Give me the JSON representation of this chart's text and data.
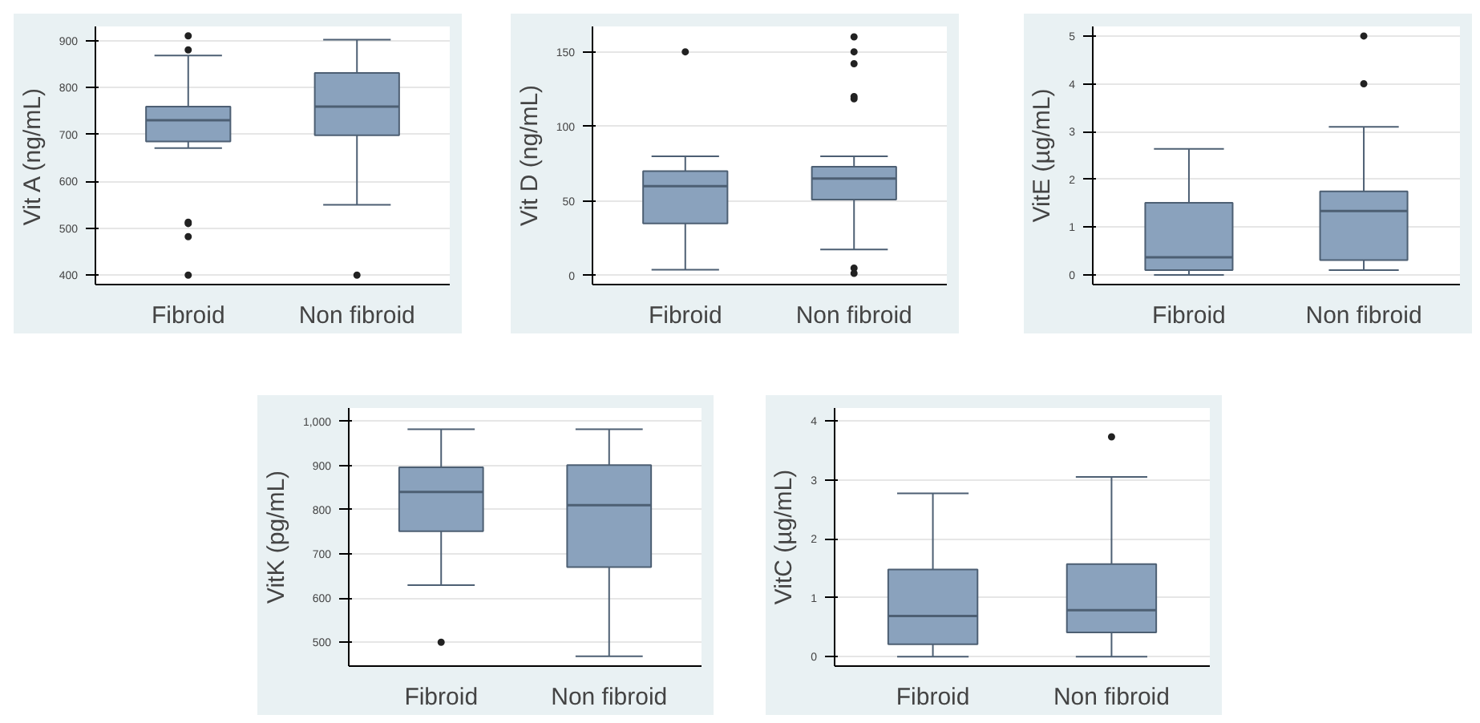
{
  "chart_data": [
    {
      "type": "box",
      "ylabel": "Vit A (ng/mL)",
      "categories": [
        "Fibroid",
        "Non fibroid"
      ],
      "ylim": [
        380,
        930
      ],
      "yticks": [
        400,
        500,
        600,
        700,
        800,
        900
      ],
      "grid": "y",
      "color": "#8aa2bd",
      "boxes": [
        {
          "low": 671,
          "q1": 685,
          "median": 730,
          "q3": 759,
          "high": 868,
          "outliers": [
            910,
            880,
            513,
            510,
            482,
            400
          ]
        },
        {
          "low": 550,
          "q1": 698,
          "median": 759,
          "q3": 831,
          "high": 902,
          "outliers": [
            400
          ]
        }
      ]
    },
    {
      "type": "box",
      "ylabel": "Vit D (ng/mL)",
      "categories": [
        "Fibroid",
        "Non fibroid"
      ],
      "ylim": [
        -6,
        167
      ],
      "yticks": [
        0,
        50,
        100,
        150
      ],
      "grid": "y",
      "color": "#8aa2bd",
      "boxes": [
        {
          "low": 4,
          "q1": 35,
          "median": 60,
          "q3": 70,
          "high": 80,
          "outliers": [
            150
          ]
        },
        {
          "low": 17.5,
          "q1": 51,
          "median": 65,
          "q3": 73,
          "high": 80,
          "outliers": [
            160,
            150,
            142,
            120,
            118.5,
            5,
            1.5
          ]
        }
      ]
    },
    {
      "type": "box",
      "ylabel": "VitE (µg/mL)",
      "categories": [
        "Fibroid",
        "Non fibroid"
      ],
      "ylim": [
        -0.2,
        5.2
      ],
      "yticks": [
        0,
        1,
        2,
        3,
        4,
        5
      ],
      "grid": "y",
      "color": "#8aa2bd",
      "boxes": [
        {
          "low": 0,
          "q1": 0.1,
          "median": 0.37,
          "q3": 1.51,
          "high": 2.64
        },
        {
          "low": 0.1,
          "q1": 0.31,
          "median": 1.34,
          "q3": 1.75,
          "high": 3.1,
          "outliers": [
            5,
            4
          ]
        }
      ]
    },
    {
      "type": "box",
      "ylabel": "VitK (pg/mL)",
      "categories": [
        "Fibroid",
        "Non fibroid"
      ],
      "ylim": [
        446,
        1030
      ],
      "yticks": [
        500,
        600,
        700,
        800,
        900,
        {
          "value": 1000,
          "label": "1,000"
        }
      ],
      "grid": "y",
      "color": "#8aa2bd",
      "boxes": [
        {
          "low": 629,
          "q1": 751,
          "median": 840,
          "q3": 896,
          "high": 982,
          "outliers": [
            500
          ]
        },
        {
          "low": 468,
          "q1": 670,
          "median": 810,
          "q3": 901,
          "high": 982
        }
      ]
    },
    {
      "type": "box",
      "ylabel": "VitC (µg/mL)",
      "categories": [
        "Fibroid",
        "Non fibroid"
      ],
      "ylim": [
        -0.16,
        4.22
      ],
      "yticks": [
        0,
        1,
        2,
        3,
        4
      ],
      "grid": "y",
      "color": "#8aa2bd",
      "boxes": [
        {
          "low": 0,
          "q1": 0.21,
          "median": 0.69,
          "q3": 1.48,
          "high": 2.77
        },
        {
          "low": 0,
          "q1": 0.41,
          "median": 0.79,
          "q3": 1.57,
          "high": 3.05,
          "outliers": [
            3.73
          ]
        }
      ]
    }
  ]
}
